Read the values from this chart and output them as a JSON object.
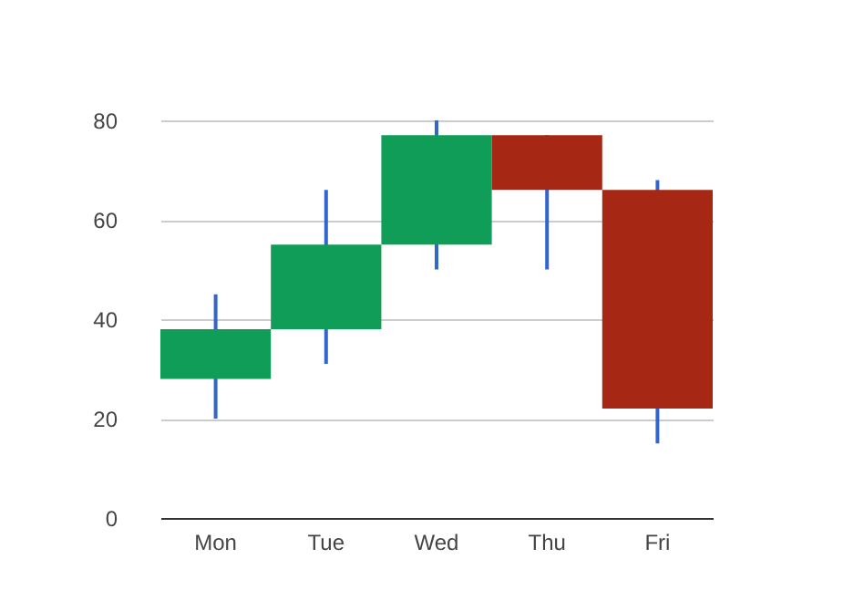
{
  "chart_data": {
    "type": "candlestick",
    "categories": [
      "Mon",
      "Tue",
      "Wed",
      "Thu",
      "Fri"
    ],
    "ohlc": [
      [
        28,
        45,
        20,
        38
      ],
      [
        38,
        66,
        31,
        55
      ],
      [
        55,
        80,
        50,
        77
      ],
      [
        77,
        77,
        50,
        66
      ],
      [
        66,
        68,
        15,
        22
      ]
    ],
    "colors": [
      "#0f9d58",
      "#0f9d58",
      "#0f9d58",
      "#a52714",
      "#a52714"
    ],
    "color": "#3366cc",
    "ylim": [
      0,
      80
    ],
    "yticks": [
      0,
      20,
      40,
      60,
      80
    ],
    "grid": "y"
  }
}
